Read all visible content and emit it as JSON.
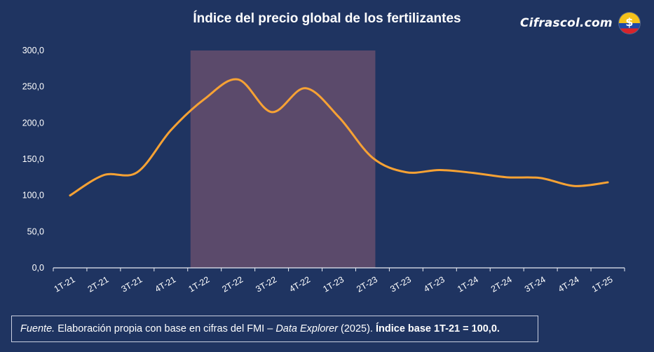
{
  "title": "Índice del precio global de los fertilizantes",
  "brand": {
    "name": "Cifrascol.com",
    "coin_symbol": "$"
  },
  "footnote": {
    "source_label": "Fuente.",
    "text1": " Elaboración propia con base en cifras del FMI – ",
    "data_explorer": "Data Explorer",
    "text2": " (2025). ",
    "base_note": "Índice base 1T-21 = 100,0."
  },
  "colors": {
    "background": "#1f3461",
    "line": "#f7a234",
    "highlight": "#5b4a6b",
    "text": "#ffffff"
  },
  "chart_data": {
    "type": "line",
    "title": "Índice del precio global de los fertilizantes",
    "xlabel": "",
    "ylabel": "",
    "ylim": [
      0,
      300
    ],
    "ytick_labels": [
      "0,0",
      "50,0",
      "100,0",
      "150,0",
      "200,0",
      "250,0",
      "300,0"
    ],
    "categories": [
      "1T-21",
      "2T-21",
      "3T-21",
      "4T-21",
      "1T-22",
      "2T-22",
      "3T-22",
      "4T-22",
      "1T-23",
      "2T-23",
      "3T-23",
      "4T-23",
      "1T-24",
      "2T-24",
      "3T-24",
      "4T-24",
      "1T-25"
    ],
    "series": [
      {
        "values": [
          100,
          128,
          132,
          190,
          233,
          260,
          215,
          248,
          208,
          152,
          132,
          135,
          131,
          125,
          124,
          113,
          118
        ]
      }
    ],
    "highlight_range": [
      "1T-22",
      "2T-23"
    ],
    "grid": false,
    "legend": "none"
  }
}
